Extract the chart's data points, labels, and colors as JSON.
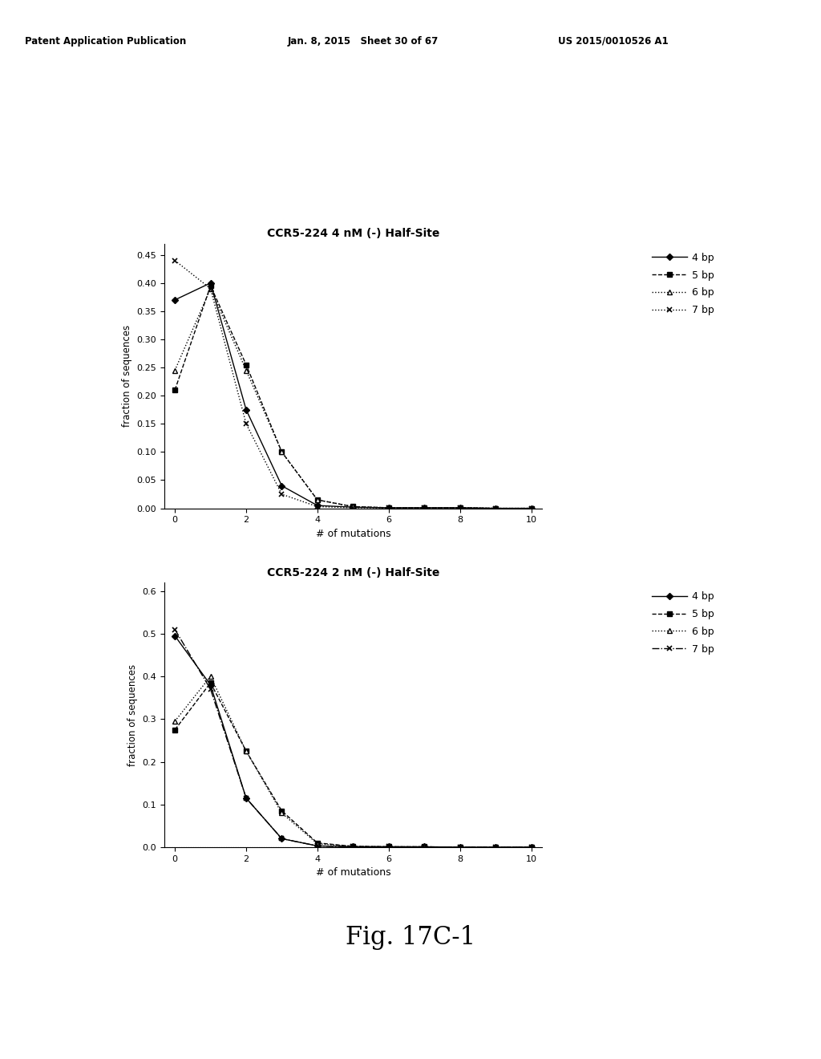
{
  "top_chart": {
    "title": "CCR5-224 4 nM (-) Half-Site",
    "x": [
      0,
      1,
      2,
      3,
      4,
      5,
      6,
      7,
      8,
      9,
      10
    ],
    "series_4bp": [
      0.37,
      0.4,
      0.175,
      0.04,
      0.005,
      0.002,
      0.001,
      0.001,
      0.001,
      0.0,
      0.0
    ],
    "series_5bp": [
      0.21,
      0.395,
      0.255,
      0.1,
      0.015,
      0.003,
      0.001,
      0.001,
      0.001,
      0.0,
      0.0
    ],
    "series_6bp": [
      0.245,
      0.39,
      0.245,
      0.1,
      0.015,
      0.003,
      0.001,
      0.001,
      0.001,
      0.0,
      0.0
    ],
    "series_7bp": [
      0.44,
      0.39,
      0.15,
      0.025,
      0.003,
      0.001,
      0.001,
      0.001,
      0.001,
      0.0,
      0.0
    ],
    "ylim": [
      0,
      0.47
    ],
    "yticks": [
      0,
      0.05,
      0.1,
      0.15,
      0.2,
      0.25,
      0.3,
      0.35,
      0.4,
      0.45
    ]
  },
  "bottom_chart": {
    "title": "CCR5-224 2 nM (-) Half-Site",
    "x": [
      0,
      1,
      2,
      3,
      4,
      5,
      6,
      7,
      8,
      9,
      10
    ],
    "series_4bp": [
      0.495,
      0.38,
      0.115,
      0.02,
      0.003,
      0.001,
      0.001,
      0.001,
      0.0,
      0.0,
      0.0
    ],
    "series_5bp": [
      0.275,
      0.385,
      0.225,
      0.085,
      0.01,
      0.002,
      0.001,
      0.001,
      0.0,
      0.0,
      0.0
    ],
    "series_6bp": [
      0.295,
      0.4,
      0.225,
      0.08,
      0.008,
      0.002,
      0.001,
      0.001,
      0.0,
      0.0,
      0.0
    ],
    "series_7bp": [
      0.51,
      0.37,
      0.115,
      0.02,
      0.003,
      0.001,
      0.001,
      0.0,
      0.0,
      0.0,
      0.0
    ],
    "ylim": [
      0,
      0.62
    ],
    "yticks": [
      0,
      0.1,
      0.2,
      0.3,
      0.4,
      0.5,
      0.6
    ]
  },
  "xlabel": "# of mutations",
  "ylabel": "fraction of sequences",
  "legend_labels": [
    "4 bp",
    "5 bp",
    "6 bp",
    "7 bp"
  ],
  "header_left": "Patent Application Publication",
  "header_mid": "Jan. 8, 2015   Sheet 30 of 67",
  "header_right": "US 2015/0010526 A1",
  "fig_label": "Fig. 17C-1",
  "bg_color": "#ffffff",
  "line_color": "#000000"
}
